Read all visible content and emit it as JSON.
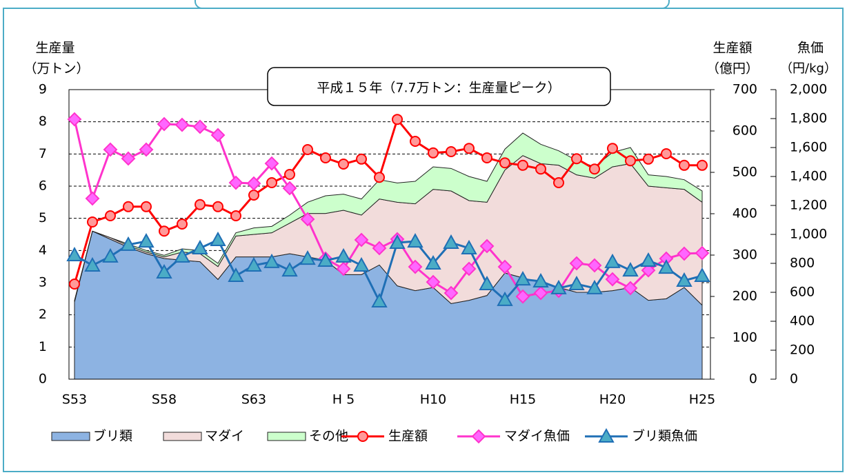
{
  "chart_data": {
    "type": "combo",
    "annotation": "平成１５年（7.7万トン：生産量ピーク）",
    "y_label": "生産量",
    "y_unit": "（万トン）",
    "y2_label": "生産額",
    "y2_unit": "（億円）",
    "y3_label": "魚価",
    "y3_unit": "（円/kg）",
    "categories": [
      "S53",
      null,
      null,
      null,
      null,
      "S58",
      null,
      null,
      null,
      null,
      "S63",
      null,
      null,
      null,
      null,
      "H 5",
      null,
      null,
      null,
      null,
      "H10",
      null,
      null,
      null,
      null,
      "H15",
      null,
      null,
      null,
      null,
      "H20",
      null,
      null,
      null,
      null,
      "H25"
    ],
    "ylim": [
      0,
      9
    ],
    "yticks": [
      0,
      1,
      2,
      3,
      4,
      5,
      6,
      7,
      8,
      9
    ],
    "y2lim": [
      0,
      700
    ],
    "y2ticks": [
      0,
      100,
      200,
      300,
      400,
      500,
      600,
      700
    ],
    "y3lim": [
      0,
      2000
    ],
    "y3ticks": [
      0,
      200,
      400,
      600,
      800,
      {
        "value": 1000,
        "label": "1,000"
      },
      {
        "value": 1200,
        "label": "1,200"
      },
      {
        "value": 1400,
        "label": "1,400"
      },
      {
        "value": 1600,
        "label": "1,600"
      },
      {
        "value": 1800,
        "label": "1,800"
      },
      {
        "value": 2000,
        "label": "2,000"
      }
    ],
    "grid": true,
    "series": [
      {
        "name": "ブリ類",
        "type": "area",
        "axis": "y",
        "color": "#8db3e2",
        "values": [
          2.4,
          4.6,
          4.35,
          4.1,
          3.9,
          3.75,
          3.7,
          3.65,
          3.1,
          3.8,
          3.8,
          3.8,
          3.9,
          3.8,
          3.7,
          3.25,
          3.25,
          3.55,
          2.9,
          2.75,
          2.85,
          2.35,
          2.45,
          2.6,
          3.3,
          3.15,
          3.0,
          2.85,
          2.7,
          2.7,
          2.75,
          2.85,
          2.45,
          2.5,
          2.85,
          2.3
        ]
      },
      {
        "name": "マダイ",
        "type": "area",
        "axis": "y",
        "color": "#f2dcdb",
        "values": [
          0.02,
          0,
          0.05,
          0.05,
          0.05,
          0.05,
          0.25,
          0.25,
          0.4,
          0.65,
          0.7,
          0.75,
          0.95,
          1.35,
          1.45,
          2.0,
          1.85,
          2.05,
          2.6,
          2.7,
          3.05,
          3.5,
          3.1,
          2.9,
          3.2,
          3.8,
          3.7,
          3.8,
          3.65,
          3.55,
          3.85,
          3.85,
          3.55,
          3.45,
          3.05,
          3.2
        ]
      },
      {
        "name": "その他",
        "type": "area",
        "axis": "y",
        "color": "#ccffcc",
        "values": [
          0.03,
          0,
          0,
          0.05,
          0.05,
          0.05,
          0.1,
          0.1,
          0.1,
          0.1,
          0.2,
          0.2,
          0.25,
          0.35,
          0.55,
          0.5,
          0.5,
          0.6,
          0.6,
          0.7,
          0.7,
          0.7,
          0.75,
          0.65,
          0.65,
          0.7,
          0.6,
          0.45,
          0.45,
          0.35,
          0.45,
          0.5,
          0.35,
          0.35,
          0.3,
          0.35
        ]
      },
      {
        "name": "生産額",
        "type": "line",
        "axis": "y2",
        "color": "#ff0000",
        "marker": "circle",
        "marker_color": "#ff9999",
        "values": [
          230,
          380,
          395,
          417,
          417,
          358,
          375,
          422,
          417,
          395,
          445,
          475,
          495,
          555,
          535,
          520,
          532,
          488,
          628,
          575,
          547,
          550,
          558,
          535,
          523,
          517,
          508,
          475,
          533,
          508,
          558,
          528,
          532,
          545,
          517,
          517
        ]
      },
      {
        "name": "マダイ魚価",
        "type": "line",
        "axis": "y3",
        "color": "#ff33cc",
        "marker": "diamond",
        "marker_color": "#ff66ff",
        "values": [
          1795,
          1248,
          1586,
          1524,
          1586,
          1762,
          1757,
          1743,
          1686,
          1357,
          1352,
          1490,
          1319,
          1105,
          833,
          762,
          962,
          905,
          967,
          776,
          671,
          595,
          762,
          919,
          776,
          571,
          595,
          610,
          800,
          786,
          690,
          629,
          752,
          833,
          867,
          871
        ]
      },
      {
        "name": "ブリ類魚価",
        "type": "line",
        "axis": "y3",
        "color": "#1f6fb5",
        "marker": "triangle",
        "marker_color": "#4bacc6",
        "values": [
          857,
          786,
          848,
          929,
          952,
          738,
          848,
          905,
          962,
          714,
          786,
          810,
          752,
          833,
          819,
          848,
          786,
          538,
          943,
          952,
          800,
          943,
          905,
          657,
          548,
          690,
          676,
          629,
          657,
          629,
          810,
          752,
          819,
          771,
          681,
          714
        ]
      }
    ]
  }
}
